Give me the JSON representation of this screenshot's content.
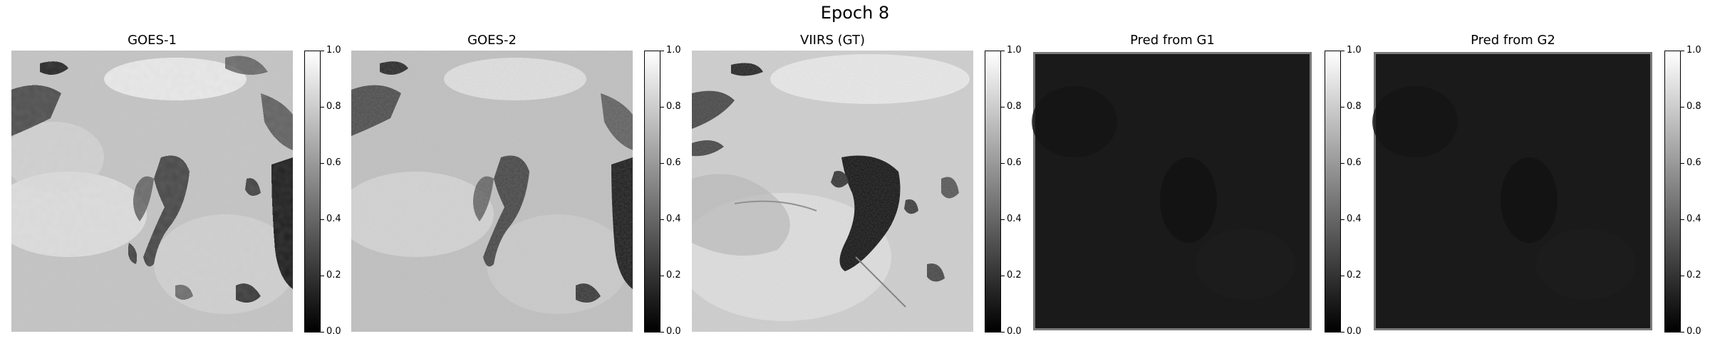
{
  "figure": {
    "title": "Epoch 8"
  },
  "chart_data": [
    {
      "type": "heatmap",
      "title": "GOES-1",
      "colormap": "gray",
      "colorbar_range": [
        0.0,
        1.0
      ],
      "colorbar_ticks": [
        "0.0",
        "0.2",
        "0.4",
        "0.6",
        "0.8",
        "1.0"
      ]
    },
    {
      "type": "heatmap",
      "title": "GOES-2",
      "colormap": "gray",
      "colorbar_range": [
        0.0,
        1.0
      ],
      "colorbar_ticks": [
        "0.0",
        "0.2",
        "0.4",
        "0.6",
        "0.8",
        "1.0"
      ]
    },
    {
      "type": "heatmap",
      "title": "VIIRS (GT)",
      "colormap": "gray",
      "colorbar_range": [
        0.0,
        1.0
      ],
      "colorbar_ticks": [
        "0.0",
        "0.2",
        "0.4",
        "0.6",
        "0.8",
        "1.0"
      ]
    },
    {
      "type": "heatmap",
      "title": "Pred from G1",
      "colormap": "gray",
      "colorbar_range": [
        0.0,
        1.0
      ],
      "colorbar_ticks": [
        "0.0",
        "0.2",
        "0.4",
        "0.6",
        "0.8",
        "1.0"
      ]
    },
    {
      "type": "heatmap",
      "title": "Pred from G2",
      "colormap": "gray",
      "colorbar_range": [
        0.0,
        1.0
      ],
      "colorbar_ticks": [
        "0.0",
        "0.2",
        "0.4",
        "0.6",
        "0.8",
        "1.0"
      ]
    }
  ]
}
